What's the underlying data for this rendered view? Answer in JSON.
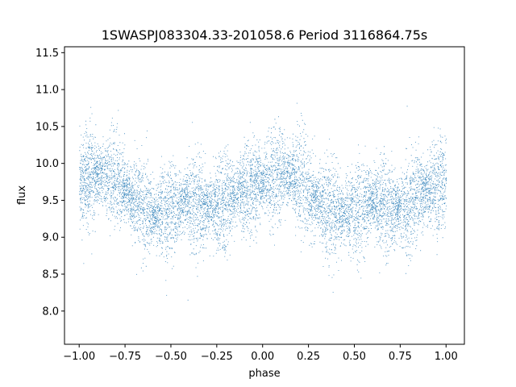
{
  "chart_data": {
    "type": "scatter",
    "title": "1SWASPJ083304.33-201058.6 Period 3116864.75s",
    "xlabel": "phase",
    "ylabel": "flux",
    "xlim": [
      -1.08,
      1.1
    ],
    "ylim": [
      7.55,
      11.58
    ],
    "x_ticks": [
      -1.0,
      -0.75,
      -0.5,
      -0.25,
      0.0,
      0.25,
      0.5,
      0.75,
      1.0
    ],
    "x_tick_labels": [
      "−1.00",
      "−0.75",
      "−0.50",
      "−0.25",
      "0.00",
      "0.25",
      "0.50",
      "0.75",
      "1.00"
    ],
    "y_ticks": [
      8.0,
      8.5,
      9.0,
      9.5,
      10.0,
      10.5,
      11.0,
      11.5
    ],
    "y_tick_labels": [
      "8.0",
      "8.5",
      "9.0",
      "9.5",
      "10.0",
      "10.5",
      "11.0",
      "11.5"
    ],
    "grid": false,
    "marker_color": "#1f77b4",
    "series": [
      {
        "phase_curve": [
          {
            "x": -1.0,
            "y": 9.75
          },
          {
            "x": -0.9,
            "y": 9.85
          },
          {
            "x": -0.8,
            "y": 9.78
          },
          {
            "x": -0.7,
            "y": 9.5
          },
          {
            "x": -0.6,
            "y": 9.32
          },
          {
            "x": -0.5,
            "y": 9.35
          },
          {
            "x": -0.4,
            "y": 9.5
          },
          {
            "x": -0.3,
            "y": 9.38
          },
          {
            "x": -0.2,
            "y": 9.45
          },
          {
            "x": -0.1,
            "y": 9.65
          },
          {
            "x": 0.0,
            "y": 9.75
          },
          {
            "x": 0.1,
            "y": 9.85
          },
          {
            "x": 0.2,
            "y": 9.78
          },
          {
            "x": 0.3,
            "y": 9.5
          },
          {
            "x": 0.4,
            "y": 9.32
          },
          {
            "x": 0.5,
            "y": 9.35
          },
          {
            "x": 0.6,
            "y": 9.5
          },
          {
            "x": 0.7,
            "y": 9.38
          },
          {
            "x": 0.8,
            "y": 9.45
          },
          {
            "x": 0.9,
            "y": 9.65
          },
          {
            "x": 1.0,
            "y": 9.75
          }
        ],
        "scatter_sd": 0.28,
        "point_count": 9000,
        "x_range": [
          -1.0,
          1.0
        ],
        "y_range": [
          7.7,
          11.42
        ]
      }
    ]
  }
}
